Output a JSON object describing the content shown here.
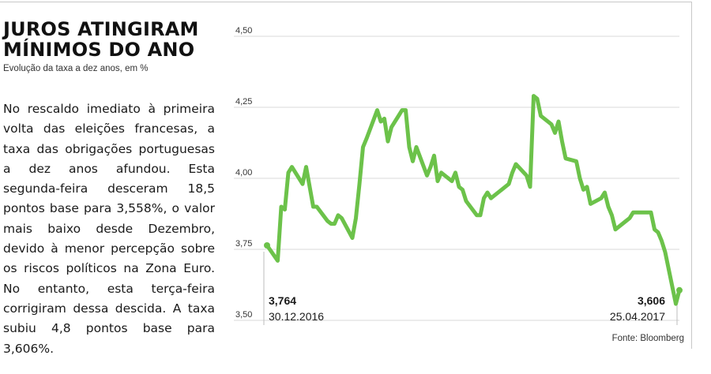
{
  "headline": "JUROS ATINGIRAM\nMÍNIMOS DO ANO",
  "subtitle": "Evolução da taxa a dez anos, em %",
  "body_text": "No rescaldo imediato à primeira volta das eleições francesas, a taxa das obrigações portuguesas a dez anos afundou. Esta segunda-feira desceram 18,5 pontos base para 3,558%, o valor mais baixo desde Dezembro, devido à menor percepção sobre os riscos políticos na Zona Euro. No entanto, esta terça-feira corrigiram dessa descida. A taxa subiu 4,8 pontos base para 3,606%.",
  "source": "Fonte: Bloomberg",
  "colors": {
    "line": "#6cc24a",
    "grid": "#d9d9d9",
    "text": "#1a1a1a"
  },
  "chart_data": {
    "type": "line",
    "title": "JUROS ATINGIRAM MÍNIMOS DO ANO",
    "subtitle": "Evolução da taxa a dez anos, em %",
    "xlabel": "",
    "ylabel": "",
    "ylim": [
      3.5,
      4.5
    ],
    "yticks": [
      "4,50",
      "4,25",
      "4,00",
      "3,75",
      "3,50"
    ],
    "grid": true,
    "start_label": {
      "value": "3,764",
      "date": "30.12.2016"
    },
    "end_label": {
      "value": "3,606",
      "date": "25.04.2017"
    },
    "x": [
      "2016-12-30",
      "2017-01-02",
      "2017-01-03",
      "2017-01-04",
      "2017-01-05",
      "2017-01-06",
      "2017-01-09",
      "2017-01-10",
      "2017-01-11",
      "2017-01-12",
      "2017-01-13",
      "2017-01-16",
      "2017-01-17",
      "2017-01-18",
      "2017-01-19",
      "2017-01-20",
      "2017-01-23",
      "2017-01-24",
      "2017-01-25",
      "2017-01-26",
      "2017-01-27",
      "2017-01-30",
      "2017-01-31",
      "2017-02-01",
      "2017-02-02",
      "2017-02-03",
      "2017-02-06",
      "2017-02-07",
      "2017-02-08",
      "2017-02-09",
      "2017-02-10",
      "2017-02-13",
      "2017-02-14",
      "2017-02-15",
      "2017-02-16",
      "2017-02-17",
      "2017-02-20",
      "2017-02-21",
      "2017-02-22",
      "2017-02-23",
      "2017-02-24",
      "2017-02-27",
      "2017-02-28",
      "2017-03-01",
      "2017-03-02",
      "2017-03-03",
      "2017-03-06",
      "2017-03-07",
      "2017-03-08",
      "2017-03-09",
      "2017-03-10",
      "2017-03-13",
      "2017-03-14",
      "2017-03-15",
      "2017-03-16",
      "2017-03-17",
      "2017-03-20",
      "2017-03-21",
      "2017-03-22",
      "2017-03-23",
      "2017-03-24",
      "2017-03-27",
      "2017-03-28",
      "2017-03-29",
      "2017-03-30",
      "2017-03-31",
      "2017-04-03",
      "2017-04-04",
      "2017-04-05",
      "2017-04-06",
      "2017-04-07",
      "2017-04-10",
      "2017-04-11",
      "2017-04-12",
      "2017-04-13",
      "2017-04-17",
      "2017-04-18",
      "2017-04-19",
      "2017-04-20",
      "2017-04-21",
      "2017-04-24",
      "2017-04-25"
    ],
    "series": [
      {
        "name": "",
        "values": [
          3.764,
          3.71,
          3.9,
          3.89,
          4.02,
          4.04,
          3.98,
          4.04,
          3.97,
          3.9,
          3.9,
          3.85,
          3.84,
          3.84,
          3.87,
          3.86,
          3.79,
          3.86,
          3.98,
          4.11,
          4.14,
          4.24,
          4.2,
          4.21,
          4.13,
          4.18,
          4.24,
          4.24,
          4.11,
          4.06,
          4.11,
          4.01,
          4.04,
          4.08,
          3.99,
          4.02,
          3.99,
          4.02,
          3.97,
          3.96,
          3.92,
          3.87,
          3.87,
          3.93,
          3.95,
          3.93,
          3.96,
          3.97,
          3.98,
          4.02,
          4.05,
          4.01,
          3.97,
          4.29,
          4.28,
          4.22,
          4.19,
          4.16,
          4.2,
          4.13,
          4.07,
          4.06,
          4.0,
          3.96,
          3.97,
          3.91,
          3.93,
          3.95,
          3.9,
          3.87,
          3.82,
          3.85,
          3.86,
          3.88,
          3.88,
          3.88,
          3.82,
          3.81,
          3.78,
          3.74,
          3.558,
          3.606
        ]
      }
    ]
  }
}
